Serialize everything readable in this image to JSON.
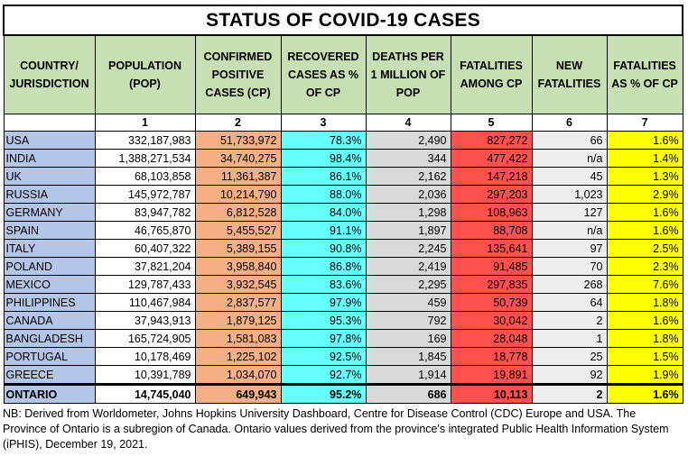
{
  "title": "STATUS OF COVID-19 CASES",
  "headers": [
    "COUNTRY/ JURISDICTION",
    "POPULATION (POP)",
    "CONFIRMED POSITIVE CASES (CP)",
    "RECOVERED CASES AS % OF CP",
    "DEATHS PER 1 MILLION OF POP",
    "FATALITIES AMONG CP",
    "NEW FATALITIES",
    "FATALITIES AS % OF CP"
  ],
  "column_numbers": [
    "",
    "1",
    "2",
    "3",
    "4",
    "5",
    "6",
    "7"
  ],
  "rows": [
    [
      "USA",
      "332,187,983",
      "51,733,972",
      "78.3%",
      "2,490",
      "827,272",
      "66",
      "1.6%"
    ],
    [
      "INDIA",
      "1,388,271,534",
      "34,740,275",
      "98.4%",
      "344",
      "477,422",
      "n/a",
      "1.4%"
    ],
    [
      "UK",
      "68,103,858",
      "11,361,387",
      "86.1%",
      "2,162",
      "147,218",
      "45",
      "1.3%"
    ],
    [
      "RUSSIA",
      "145,972,787",
      "10,214,790",
      "88.0%",
      "2,036",
      "297,203",
      "1,023",
      "2.9%"
    ],
    [
      "GERMANY",
      "83,947,782",
      "6,812,528",
      "84.0%",
      "1,298",
      "108,963",
      "127",
      "1.6%"
    ],
    [
      "SPAIN",
      "46,765,870",
      "5,455,527",
      "91.1%",
      "1,897",
      "88,708",
      "n/a",
      "1.6%"
    ],
    [
      "ITALY",
      "60,407,322",
      "5,389,155",
      "90.8%",
      "2,245",
      "135,641",
      "97",
      "2.5%"
    ],
    [
      "POLAND",
      "37,821,204",
      "3,958,840",
      "86.8%",
      "2,419",
      "91,485",
      "70",
      "2.3%"
    ],
    [
      "MEXICO",
      "129,787,433",
      "3,932,545",
      "83.6%",
      "2,295",
      "297,835",
      "268",
      "7.6%"
    ],
    [
      "PHILIPPINES",
      "110,467,984",
      "2,837,577",
      "97.9%",
      "459",
      "50,739",
      "64",
      "1.8%"
    ],
    [
      "CANADA",
      "37,943,913",
      "1,879,125",
      "95.3%",
      "792",
      "30,042",
      "2",
      "1.6%"
    ],
    [
      "BANGLADESH",
      "165,724,905",
      "1,581,083",
      "97.8%",
      "169",
      "28,048",
      "1",
      "1.8%"
    ],
    [
      "PORTUGAL",
      "10,178,469",
      "1,225,102",
      "92.5%",
      "1,845",
      "18,778",
      "25",
      "1.5%"
    ],
    [
      "GREECE",
      "10,391,789",
      "1,034,070",
      "92.7%",
      "1,914",
      "19,891",
      "92",
      "1.9%"
    ]
  ],
  "total": [
    "ONTARIO",
    "14,745,040",
    "649,943",
    "95.2%",
    "686",
    "10,113",
    "2",
    "1.6%"
  ],
  "note": "NB: Derived from Worldometer, Johns Hopkins University Dashboard, Centre for Disease Control (CDC) Europe and USA. The Province of Ontario is a subregion of Canada. Ontario values derived from the province's integrated Public Health Information System (iPHIS), December 19, 2021.",
  "colors": {
    "header": "#c6e0b4",
    "country": "#b4c6e7",
    "population": "#ffffff",
    "confirmed": "#f4b084",
    "recovered": "#66ffff",
    "deaths_per_million": "#d9d9d9",
    "fatalities": "#ff5050",
    "new_fatalities": "#ededed",
    "fatality_rate": "#ffff00"
  }
}
